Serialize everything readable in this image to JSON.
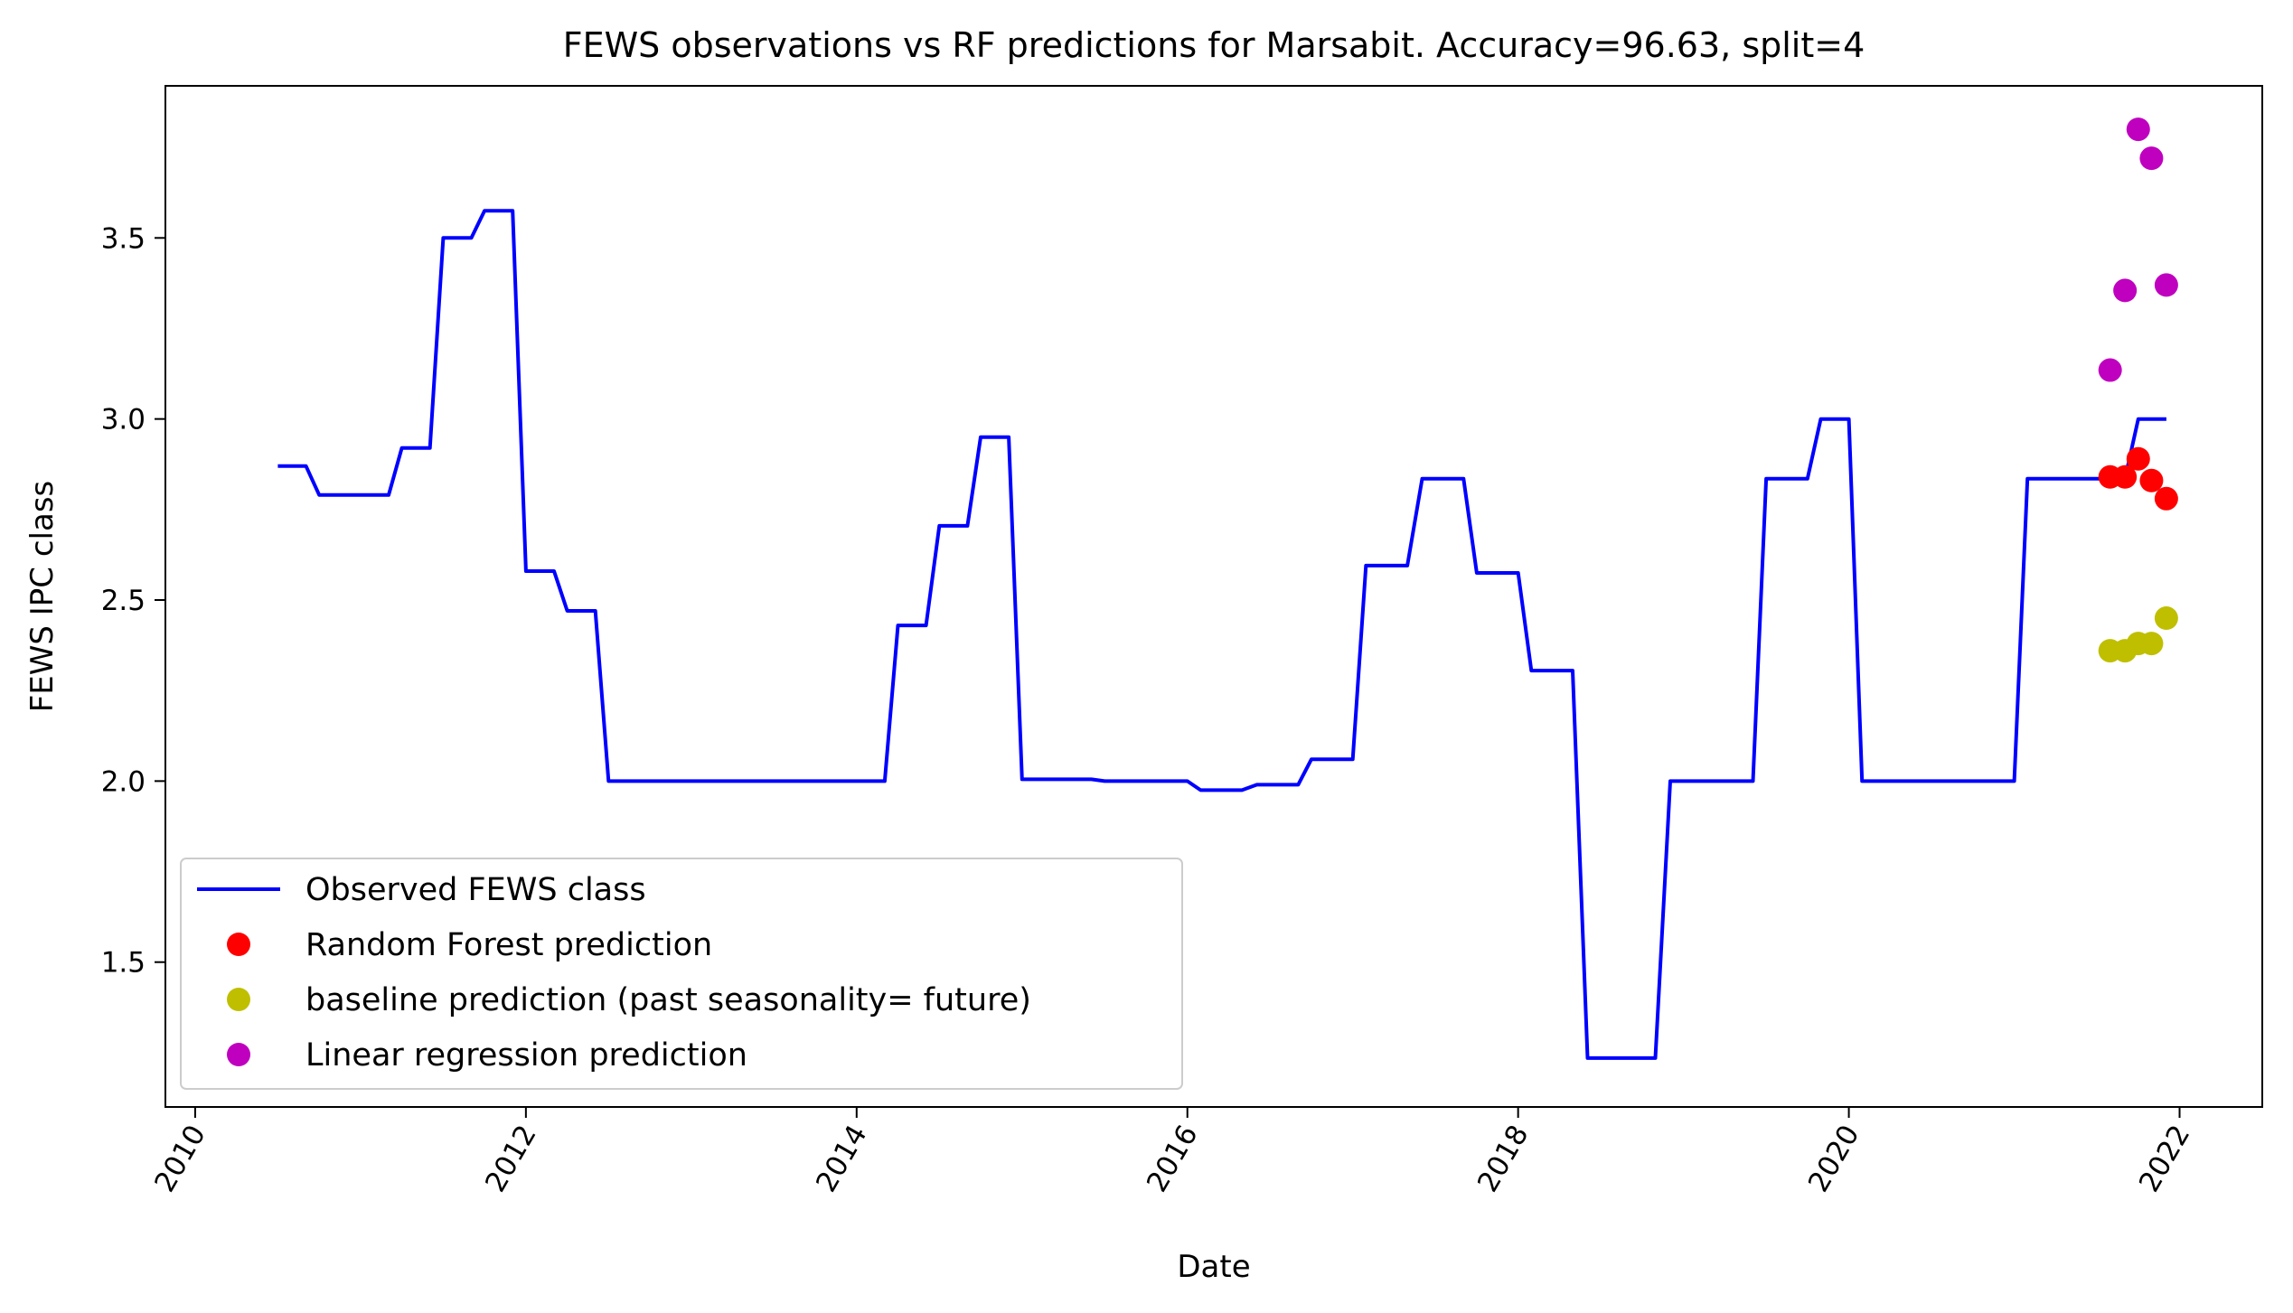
{
  "chart_data": {
    "type": "line",
    "title": "FEWS observations vs RF predictions for Marsabit. Accuracy=96.63, split=4",
    "xlabel": "Date",
    "ylabel": "FEWS IPC class",
    "xlim": [
      2009.82,
      2022.5
    ],
    "ylim": [
      1.1,
      3.92
    ],
    "x_ticks": [
      "2010",
      "2012",
      "2014",
      "2016",
      "2018",
      "2020",
      "2022"
    ],
    "y_ticks": [
      "1.5",
      "2.0",
      "2.5",
      "3.0",
      "3.5"
    ],
    "legend_position": "lower-left",
    "series": [
      {
        "name": "Observed FEWS class",
        "kind": "line",
        "color": "#0000ff",
        "x": [
          2010.5,
          2010.67,
          2010.75,
          2011.0,
          2011.17,
          2011.25,
          2011.42,
          2011.5,
          2011.67,
          2011.75,
          2011.92,
          2012.0,
          2012.17,
          2012.25,
          2012.42,
          2012.5,
          2013.17,
          2013.25,
          2014.17,
          2014.25,
          2014.42,
          2014.5,
          2014.67,
          2014.75,
          2014.92,
          2015.0,
          2015.42,
          2015.5,
          2016.0,
          2016.08,
          2016.33,
          2016.42,
          2016.67,
          2016.75,
          2017.0,
          2017.08,
          2017.33,
          2017.42,
          2017.67,
          2017.75,
          2018.0,
          2018.08,
          2018.33,
          2018.42,
          2018.83,
          2018.92,
          2019.42,
          2019.5,
          2019.75,
          2019.83,
          2020.0,
          2020.08,
          2021.0,
          2021.08,
          2021.67,
          2021.75,
          2021.92
        ],
        "y": [
          2.87,
          2.87,
          2.79,
          2.79,
          2.79,
          2.92,
          2.92,
          3.5,
          3.5,
          3.575,
          3.575,
          2.58,
          2.58,
          2.47,
          2.47,
          2.0,
          2.0,
          2.0,
          2.0,
          2.43,
          2.43,
          2.705,
          2.705,
          2.95,
          2.95,
          2.005,
          2.005,
          2.0,
          2.0,
          1.975,
          1.975,
          1.99,
          1.99,
          2.06,
          2.06,
          2.595,
          2.595,
          2.835,
          2.835,
          2.575,
          2.575,
          2.305,
          2.305,
          1.235,
          1.235,
          2.0,
          2.0,
          2.835,
          2.835,
          3.0,
          3.0,
          2.0,
          2.0,
          2.835,
          2.835,
          3.0,
          3.0
        ]
      },
      {
        "name": "Random Forest prediction",
        "kind": "scatter",
        "color": "#ff0000",
        "x": [
          2021.58,
          2021.67,
          2021.75,
          2021.83,
          2021.92
        ],
        "y": [
          2.84,
          2.84,
          2.89,
          2.83,
          2.78
        ]
      },
      {
        "name": "baseline prediction (past seasonality= future)",
        "kind": "scatter",
        "color": "#bfbf00",
        "x": [
          2021.58,
          2021.67,
          2021.75,
          2021.83,
          2021.92
        ],
        "y": [
          2.36,
          2.36,
          2.38,
          2.38,
          2.45
        ]
      },
      {
        "name": "Linear regression prediction",
        "kind": "scatter",
        "color": "#bf00bf",
        "x": [
          2021.58,
          2021.67,
          2021.75,
          2021.83,
          2021.92
        ],
        "y": [
          3.135,
          3.355,
          3.8,
          3.72,
          3.37
        ]
      }
    ]
  }
}
